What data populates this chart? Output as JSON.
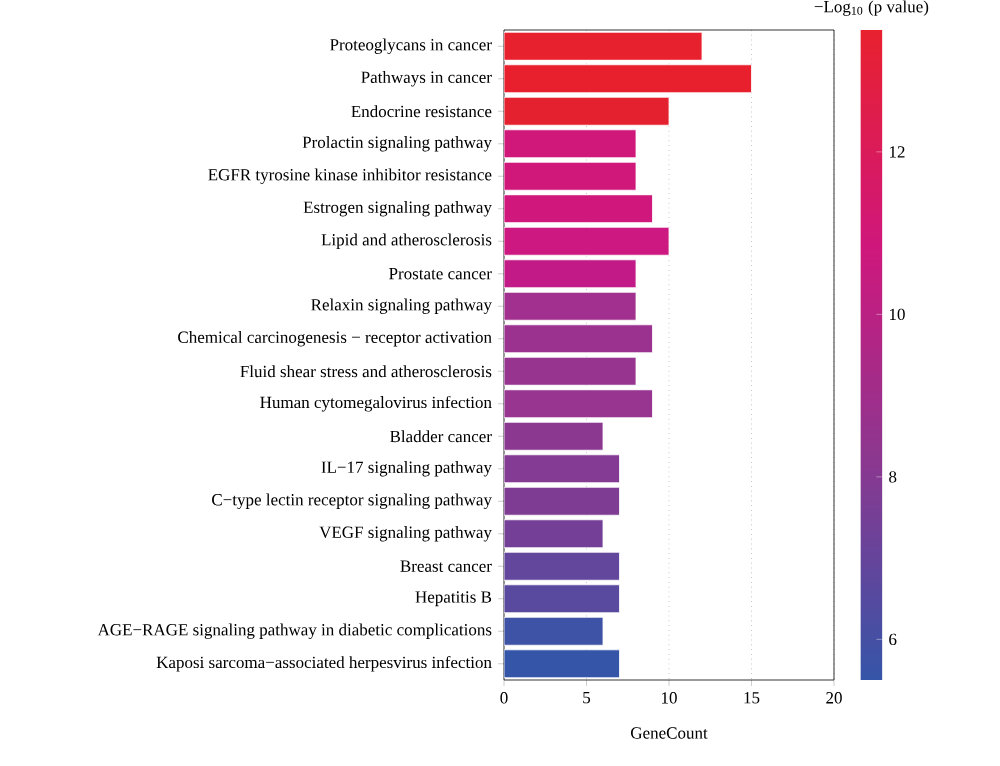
{
  "chart_data": {
    "type": "bar",
    "orientation": "horizontal",
    "xlabel": "GeneCount",
    "clabel": "−Log$_{10}$ (p value)",
    "categories": [
      "Proteoglycans in cancer",
      "Pathways in cancer",
      "Endocrine resistance",
      "Prolactin signaling pathway",
      "EGFR tyrosine kinase inhibitor resistance",
      "Estrogen signaling pathway",
      "Lipid and atherosclerosis",
      "Prostate cancer",
      "Relaxin signaling pathway",
      "Chemical carcinogenesis − receptor activation",
      "Fluid shear stress and atherosclerosis",
      "Human cytomegalovirus infection",
      "Bladder cancer",
      "IL−17 signaling pathway",
      "C−type lectin receptor signaling pathway",
      "VEGF signaling pathway",
      "Breast cancer",
      "Hepatitis B",
      "AGE−RAGE signaling pathway in diabetic complications",
      "Kaposi sarcoma−associated herpesvirus infection"
    ],
    "values": [
      12,
      15,
      10,
      8,
      8,
      9,
      10,
      8,
      8,
      9,
      8,
      9,
      6,
      7,
      7,
      6,
      7,
      7,
      6,
      7
    ],
    "colors": [
      "#e8212e",
      "#e8202e",
      "#e4212f",
      "#d0187a",
      "#d0187a",
      "#cf177c",
      "#cc1880",
      "#c21a86",
      "#a2308e",
      "#9c3290",
      "#963490",
      "#983591",
      "#8a3890",
      "#833b93",
      "#7f3c93",
      "#743f96",
      "#62479c",
      "#5a4a9f",
      "#3f53a6",
      "#3555a8"
    ],
    "xlim": [
      0,
      20
    ],
    "xticks": [
      0,
      5,
      10,
      15,
      20
    ],
    "grid": "x",
    "clim": [
      5.5,
      13.5
    ],
    "cticks": [
      6,
      8,
      10,
      12
    ]
  }
}
